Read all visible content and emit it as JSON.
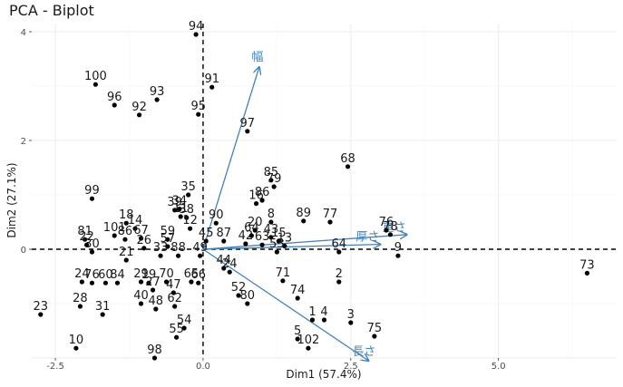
{
  "chart_data": {
    "type": "scatter",
    "title": "PCA - Biplot",
    "xlabel": "Dim1 (57.4%)",
    "ylabel": "Dim2 (27.1%)",
    "xlim": [
      -2.9,
      7.0
    ],
    "ylim": [
      -2.0,
      4.15
    ],
    "x_ticks": [
      -2.5,
      0.0,
      2.5,
      5.0
    ],
    "y_ticks": [
      0,
      2,
      4
    ],
    "grid": true,
    "reference_lines": {
      "x": 0,
      "y": 0
    },
    "point_color": "#000000",
    "arrow_color": "#4682b4",
    "points": [
      {
        "label": "94",
        "x": -0.12,
        "y": 3.95
      },
      {
        "label": "100",
        "x": -1.82,
        "y": 3.03
      },
      {
        "label": "91",
        "x": 0.15,
        "y": 2.98
      },
      {
        "label": "96",
        "x": -1.5,
        "y": 2.65
      },
      {
        "label": "93",
        "x": -0.78,
        "y": 2.75
      },
      {
        "label": "92",
        "x": -1.08,
        "y": 2.47
      },
      {
        "label": "95",
        "x": -0.08,
        "y": 2.48
      },
      {
        "label": "97",
        "x": 0.75,
        "y": 2.17
      },
      {
        "label": "68",
        "x": 2.45,
        "y": 1.52
      },
      {
        "label": "85",
        "x": 1.15,
        "y": 1.27
      },
      {
        "label": "79",
        "x": 1.2,
        "y": 1.15
      },
      {
        "label": "86",
        "x": 1.0,
        "y": 0.9
      },
      {
        "label": "16",
        "x": 0.9,
        "y": 0.84
      },
      {
        "label": "35",
        "x": -0.25,
        "y": 1.0
      },
      {
        "label": "99",
        "x": -1.88,
        "y": 0.93
      },
      {
        "label": "89",
        "x": 1.7,
        "y": 0.52
      },
      {
        "label": "77",
        "x": 2.15,
        "y": 0.5
      },
      {
        "label": "76",
        "x": 3.1,
        "y": 0.35
      },
      {
        "label": "78",
        "x": 3.17,
        "y": 0.27
      },
      {
        "label": "9",
        "x": 3.3,
        "y": -0.12
      },
      {
        "label": "73",
        "x": 6.5,
        "y": -0.44
      },
      {
        "label": "90",
        "x": 0.22,
        "y": 0.48
      },
      {
        "label": "8",
        "x": 1.15,
        "y": 0.5
      },
      {
        "label": "20",
        "x": 0.88,
        "y": 0.35
      },
      {
        "label": "87",
        "x": 0.35,
        "y": 0.15
      },
      {
        "label": "18",
        "x": -1.3,
        "y": 0.48
      },
      {
        "label": "14",
        "x": -1.15,
        "y": 0.38
      },
      {
        "label": "81",
        "x": -2.0,
        "y": 0.18
      },
      {
        "label": "22",
        "x": -1.97,
        "y": 0.08
      },
      {
        "label": "30",
        "x": -1.88,
        "y": -0.05
      },
      {
        "label": "101",
        "x": -1.5,
        "y": 0.25
      },
      {
        "label": "39",
        "x": -0.48,
        "y": 0.72
      },
      {
        "label": "34",
        "x": -0.4,
        "y": 0.74
      },
      {
        "label": "11",
        "x": -0.38,
        "y": 0.6
      },
      {
        "label": "38",
        "x": -0.28,
        "y": 0.58
      },
      {
        "label": "12",
        "x": -0.22,
        "y": 0.38
      },
      {
        "label": "59",
        "x": -0.6,
        "y": 0.18
      },
      {
        "label": "57",
        "x": -0.6,
        "y": 0.05
      },
      {
        "label": "67",
        "x": -1.05,
        "y": 0.2
      },
      {
        "label": "86b",
        "x": -1.32,
        "y": 0.18
      },
      {
        "label": "26",
        "x": -1.0,
        "y": 0.02
      },
      {
        "label": "21",
        "x": -1.3,
        "y": -0.2
      },
      {
        "label": "45",
        "x": 0.05,
        "y": 0.15
      },
      {
        "label": "49",
        "x": -0.05,
        "y": -0.12
      },
      {
        "label": "88",
        "x": -0.42,
        "y": -0.12
      },
      {
        "label": "33",
        "x": -0.72,
        "y": -0.12
      },
      {
        "label": "42",
        "x": 0.72,
        "y": 0.1
      },
      {
        "label": "64",
        "x": 0.82,
        "y": 0.25
      },
      {
        "label": "43",
        "x": 1.15,
        "y": 0.22
      },
      {
        "label": "15",
        "x": 1.28,
        "y": 0.15
      },
      {
        "label": "13",
        "x": 1.38,
        "y": 0.06
      },
      {
        "label": "63",
        "x": 1.0,
        "y": 0.08
      },
      {
        "label": "53",
        "x": 1.25,
        "y": -0.05
      },
      {
        "label": "64b",
        "x": 2.3,
        "y": -0.05
      },
      {
        "label": "2",
        "x": 2.3,
        "y": -0.6
      },
      {
        "label": "24",
        "x": 0.45,
        "y": -0.42
      },
      {
        "label": "44",
        "x": 0.35,
        "y": -0.35
      },
      {
        "label": "71",
        "x": 1.35,
        "y": -0.58
      },
      {
        "label": "74",
        "x": 1.6,
        "y": -0.9
      },
      {
        "label": "52",
        "x": 0.6,
        "y": -0.85
      },
      {
        "label": "80",
        "x": 0.75,
        "y": -1.0
      },
      {
        "label": "1",
        "x": 1.85,
        "y": -1.3
      },
      {
        "label": "4",
        "x": 2.05,
        "y": -1.3
      },
      {
        "label": "3",
        "x": 2.5,
        "y": -1.35
      },
      {
        "label": "75",
        "x": 2.9,
        "y": -1.6
      },
      {
        "label": "5",
        "x": 1.6,
        "y": -1.65
      },
      {
        "label": "102",
        "x": 1.78,
        "y": -1.82
      },
      {
        "label": "23",
        "x": -2.75,
        "y": -1.2
      },
      {
        "label": "10",
        "x": -2.15,
        "y": -1.82
      },
      {
        "label": "28",
        "x": -2.08,
        "y": -1.05
      },
      {
        "label": "31",
        "x": -1.7,
        "y": -1.2
      },
      {
        "label": "24b",
        "x": -2.05,
        "y": -0.6
      },
      {
        "label": "76b",
        "x": -1.88,
        "y": -0.62
      },
      {
        "label": "60",
        "x": -1.65,
        "y": -0.62
      },
      {
        "label": "84",
        "x": -1.45,
        "y": -0.62
      },
      {
        "label": "29",
        "x": -1.05,
        "y": -0.6
      },
      {
        "label": "19",
        "x": -0.92,
        "y": -0.62
      },
      {
        "label": "40",
        "x": -1.05,
        "y": -1.0
      },
      {
        "label": "48",
        "x": -0.8,
        "y": -1.1
      },
      {
        "label": "62",
        "x": -0.48,
        "y": -1.05
      },
      {
        "label": "47",
        "x": -0.5,
        "y": -0.8
      },
      {
        "label": "27",
        "x": -0.85,
        "y": -0.75
      },
      {
        "label": "70",
        "x": -0.62,
        "y": -0.6
      },
      {
        "label": "66",
        "x": -0.08,
        "y": -0.62
      },
      {
        "label": "65",
        "x": -0.2,
        "y": -0.6
      },
      {
        "label": "54",
        "x": -0.32,
        "y": -1.45
      },
      {
        "label": "55",
        "x": -0.45,
        "y": -1.62
      },
      {
        "label": "98",
        "x": -0.82,
        "y": -2.0
      }
    ],
    "arrows": [
      {
        "label": "幅",
        "x": 0.95,
        "y": 3.35
      },
      {
        "label": "厚さ",
        "x": 3.0,
        "y": 0.09
      },
      {
        "label": "重さ",
        "x": 3.45,
        "y": 0.27
      },
      {
        "label": "長さ",
        "x": 2.8,
        "y": -2.05
      }
    ]
  }
}
